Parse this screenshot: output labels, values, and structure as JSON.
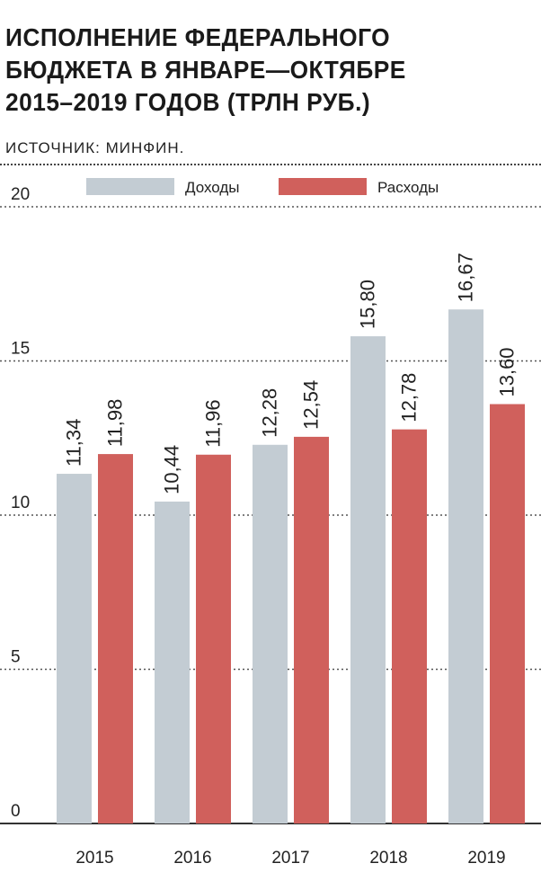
{
  "title_lines": [
    "ИСПОЛНЕНИЕ ФЕДЕРАЛЬНОГО",
    "БЮДЖЕТА В ЯНВАРЕ—ОКТЯБРЕ",
    "2015–2019 ГОДОВ (ТРЛН РУБ.)"
  ],
  "source": "ИСТОЧНИК: МИНФИН.",
  "chart_data": {
    "type": "bar",
    "title": "ИСПОЛНЕНИЕ ФЕДЕРАЛЬНОГО БЮДЖЕТА В ЯНВАРЕ—ОКТЯБРЕ 2015–2019 ГОДОВ (ТРЛН РУБ.)",
    "categories": [
      "2015",
      "2016",
      "2017",
      "2018",
      "2019"
    ],
    "series": [
      {
        "name": "Доходы",
        "color": "#c3ccd3",
        "values": [
          11.34,
          10.44,
          12.28,
          15.8,
          16.67
        ],
        "labels": [
          "11,34",
          "10,44",
          "12,28",
          "15,80",
          "16,67"
        ]
      },
      {
        "name": "Расходы",
        "color": "#d0605c",
        "values": [
          11.98,
          11.96,
          12.54,
          12.78,
          13.6
        ],
        "labels": [
          "11,98",
          "11,96",
          "12,54",
          "12,78",
          "13,60"
        ]
      }
    ],
    "yticks": [
      "0",
      "5",
      "10",
      "15",
      "20"
    ],
    "ylim": [
      0,
      20
    ],
    "grid": true,
    "legend_position": "top"
  }
}
